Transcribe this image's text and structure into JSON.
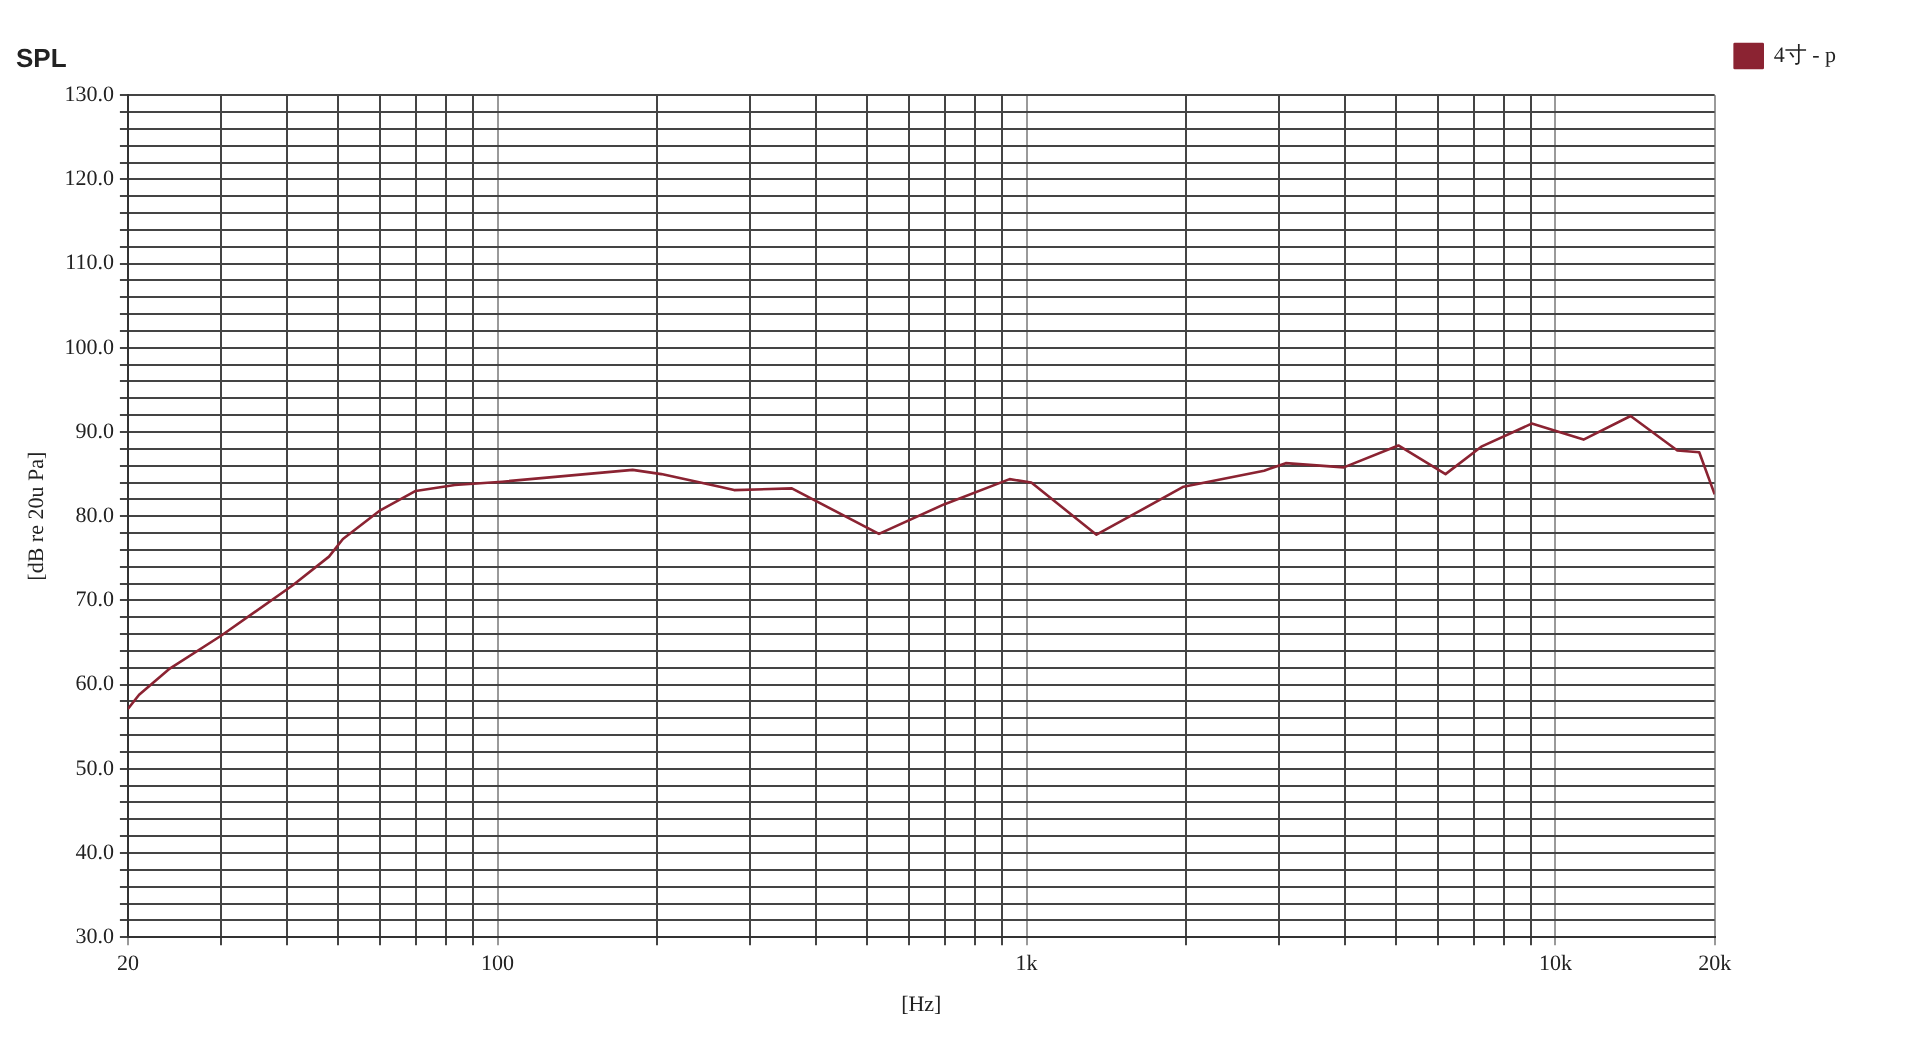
{
  "chart_data": {
    "type": "line",
    "title": "SPL",
    "xlabel": "[Hz]",
    "ylabel": "[dB re 20u Pa]",
    "log": "x",
    "grid": true,
    "legend": "top right",
    "marker": "none",
    "line_style": "solid",
    "xlim": [
      20,
      20000
    ],
    "ylim": [
      30,
      130
    ],
    "xticks": [
      20,
      {
        "value": 30,
        "label": null
      },
      {
        "value": 40,
        "label": null
      },
      {
        "value": 50,
        "label": null
      },
      {
        "value": 60,
        "label": null
      },
      {
        "value": 70,
        "label": null
      },
      {
        "value": 80,
        "label": null
      },
      {
        "value": 90,
        "label": null
      },
      100,
      {
        "value": 200,
        "label": null
      },
      {
        "value": 300,
        "label": null
      },
      {
        "value": 400,
        "label": null
      },
      {
        "value": 500,
        "label": null
      },
      {
        "value": 600,
        "label": null
      },
      {
        "value": 700,
        "label": null
      },
      {
        "value": 800,
        "label": null
      },
      {
        "value": 900,
        "label": null
      },
      {
        "value": 1000,
        "label": "1k"
      },
      {
        "value": 2000,
        "label": null
      },
      {
        "value": 3000,
        "label": null
      },
      {
        "value": 4000,
        "label": null
      },
      {
        "value": 5000,
        "label": null
      },
      {
        "value": 6000,
        "label": null
      },
      {
        "value": 7000,
        "label": null
      },
      {
        "value": 8000,
        "label": null
      },
      {
        "value": 9000,
        "label": null
      },
      {
        "value": 10000,
        "label": "10k"
      },
      {
        "value": 20000,
        "label": "20k"
      }
    ],
    "yticks": [
      {
        "value": 30,
        "label": "30.0"
      },
      {
        "value": 32,
        "label": null
      },
      {
        "value": 34,
        "label": null
      },
      {
        "value": 36,
        "label": null
      },
      {
        "value": 38,
        "label": null
      },
      {
        "value": 40,
        "label": "40.0"
      },
      {
        "value": 42,
        "label": null
      },
      {
        "value": 44,
        "label": null
      },
      {
        "value": 46,
        "label": null
      },
      {
        "value": 48,
        "label": null
      },
      {
        "value": 50,
        "label": "50.0"
      },
      {
        "value": 52,
        "label": null
      },
      {
        "value": 54,
        "label": null
      },
      {
        "value": 56,
        "label": null
      },
      {
        "value": 58,
        "label": null
      },
      {
        "value": 60,
        "label": "60.0"
      },
      {
        "value": 62,
        "label": null
      },
      {
        "value": 64,
        "label": null
      },
      {
        "value": 66,
        "label": null
      },
      {
        "value": 68,
        "label": null
      },
      {
        "value": 70,
        "label": "70.0"
      },
      {
        "value": 72,
        "label": null
      },
      {
        "value": 74,
        "label": null
      },
      {
        "value": 76,
        "label": null
      },
      {
        "value": 78,
        "label": null
      },
      {
        "value": 80,
        "label": "80.0"
      },
      {
        "value": 82,
        "label": null
      },
      {
        "value": 84,
        "label": null
      },
      {
        "value": 86,
        "label": null
      },
      {
        "value": 88,
        "label": null
      },
      {
        "value": 90,
        "label": "90.0"
      },
      {
        "value": 92,
        "label": null
      },
      {
        "value": 94,
        "label": null
      },
      {
        "value": 96,
        "label": null
      },
      {
        "value": 98,
        "label": null
      },
      {
        "value": 100,
        "label": "100.0"
      },
      {
        "value": 102,
        "label": null
      },
      {
        "value": 104,
        "label": null
      },
      {
        "value": 106,
        "label": null
      },
      {
        "value": 108,
        "label": null
      },
      {
        "value": 110,
        "label": "110.0"
      },
      {
        "value": 112,
        "label": null
      },
      {
        "value": 114,
        "label": null
      },
      {
        "value": 116,
        "label": null
      },
      {
        "value": 118,
        "label": null
      },
      {
        "value": 120,
        "label": "120.0"
      },
      {
        "value": 122,
        "label": null
      },
      {
        "value": 124,
        "label": null
      },
      {
        "value": 126,
        "label": null
      },
      {
        "value": 128,
        "label": null
      },
      {
        "value": 130,
        "label": "130.0"
      }
    ],
    "series": [
      {
        "name": "4寸 - p",
        "color": "#8b2332",
        "x": [
          20,
          21,
          24,
          30,
          41,
          48,
          51,
          60,
          70,
          83,
          102,
          180,
          204,
          263,
          280,
          360,
          526,
          698,
          929,
          1021,
          1356,
          1981,
          2813,
          3091,
          3980,
          5047,
          6197,
          7260,
          9020,
          11300,
          13870,
          17000,
          18700,
          20000
        ],
        "values": [
          57.1,
          58.8,
          61.9,
          65.8,
          71.8,
          75.2,
          77.3,
          80.7,
          83.0,
          83.7,
          84.1,
          85.5,
          85.0,
          83.5,
          83.1,
          83.3,
          77.9,
          81.4,
          84.4,
          84.0,
          77.8,
          83.5,
          85.4,
          86.3,
          85.8,
          88.4,
          85.0,
          88.3,
          91.0,
          89.1,
          91.9,
          87.8,
          87.6,
          82.6
        ]
      }
    ]
  }
}
